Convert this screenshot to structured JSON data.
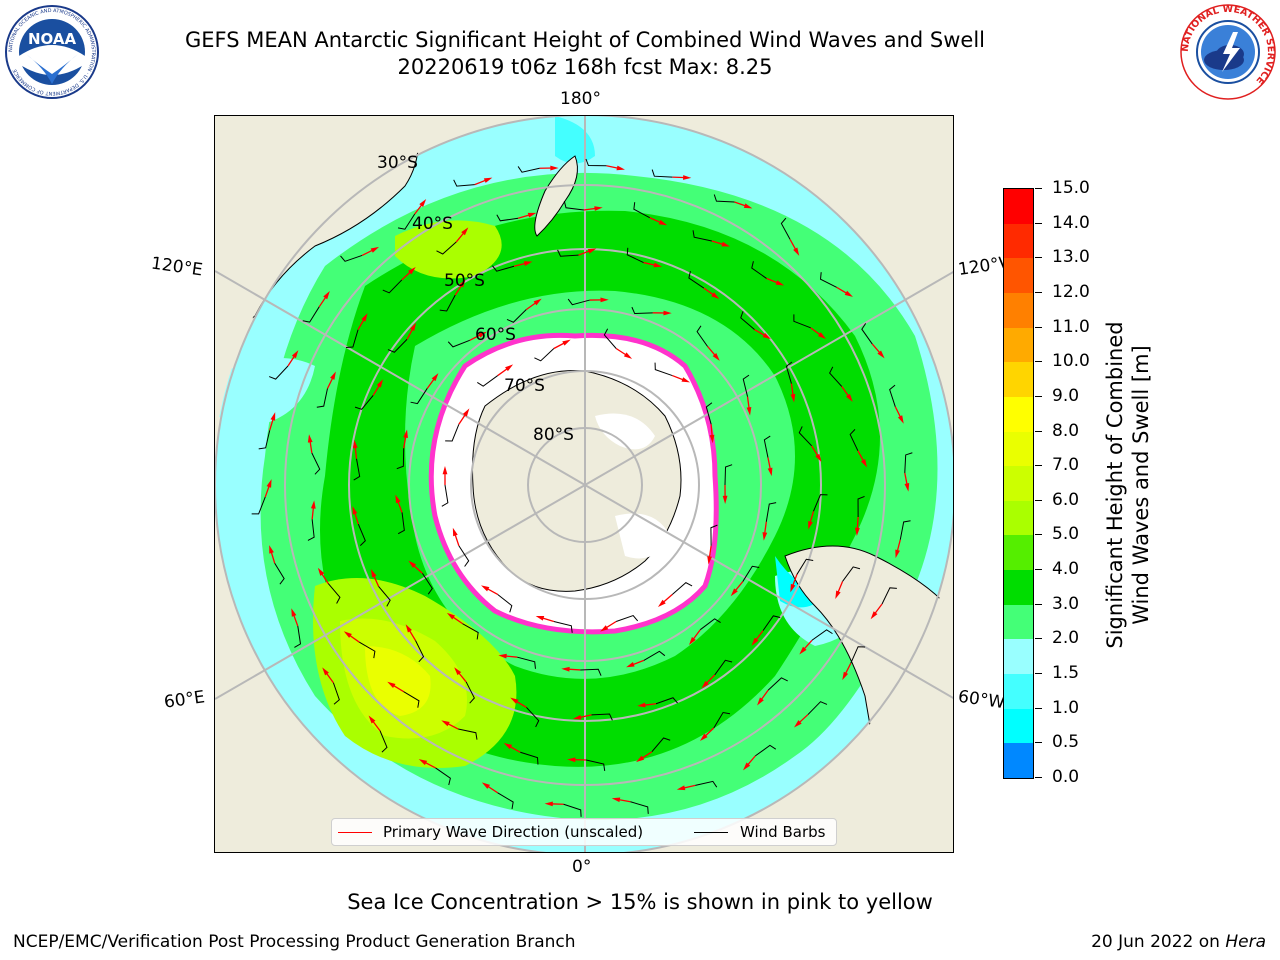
{
  "header": {
    "title_line1": "GEFS MEAN Antarctic Significant Height of Combined Wind Waves and Swell",
    "title_line2": "20220619 t06z 168h fcst   Max: 8.25"
  },
  "logos": {
    "left": "NOAA",
    "left_ring_text": "NATIONAL OCEANIC AND ATMOSPHERIC ADMINISTRATION · U.S. DEPARTMENT OF COMMERCE",
    "right_ring_text": "NATIONAL WEATHER SERVICE"
  },
  "map": {
    "projection": "south-polar-stereographic",
    "longitude_labels": {
      "top": "180°",
      "bottom": "0°",
      "upper_left": "120°E",
      "upper_right": "120°W",
      "lower_left": "60°E",
      "lower_right": "60°W"
    },
    "latitude_labels": [
      "30°S",
      "40°S",
      "50°S",
      "60°S",
      "70°S",
      "80°S"
    ],
    "colors": {
      "land": "#eeecdc",
      "sea_ice": "#ffffff",
      "ice_edge": "#ff33cc",
      "wave_arrow": "#ff0000",
      "wind_barb": "#000000"
    }
  },
  "legend": {
    "wave_direction_label": "Primary Wave Direction (unscaled)",
    "wind_barbs_label": "Wind Barbs"
  },
  "colorbar": {
    "title_line1": "Significant Height of Combined",
    "title_line2": "Wind Waves and Swell [m]",
    "ticks": [
      "15.0",
      "14.0",
      "13.0",
      "12.0",
      "11.0",
      "10.0",
      "9.0",
      "8.0",
      "7.0",
      "6.0",
      "5.0",
      "4.0",
      "3.0",
      "2.0",
      "1.5",
      "1.0",
      "0.5",
      "0.0"
    ],
    "colors_top_to_bottom": [
      "#ff0000",
      "#ff2a00",
      "#ff5500",
      "#ff8000",
      "#ffaa00",
      "#ffd500",
      "#ffff00",
      "#eaff00",
      "#ccff00",
      "#aaff00",
      "#55ee00",
      "#00dd00",
      "#44ff77",
      "#99ffff",
      "#44ffff",
      "#00ffff",
      "#0088ff",
      "#0000ff"
    ]
  },
  "subtitle": "Sea Ice Concentration > 15% is shown in pink to yellow",
  "footer": {
    "left": "NCEP/EMC/Verification Post Processing Product Generation Branch",
    "right_date": "20 Jun 2022 on ",
    "right_host": "Hera"
  }
}
